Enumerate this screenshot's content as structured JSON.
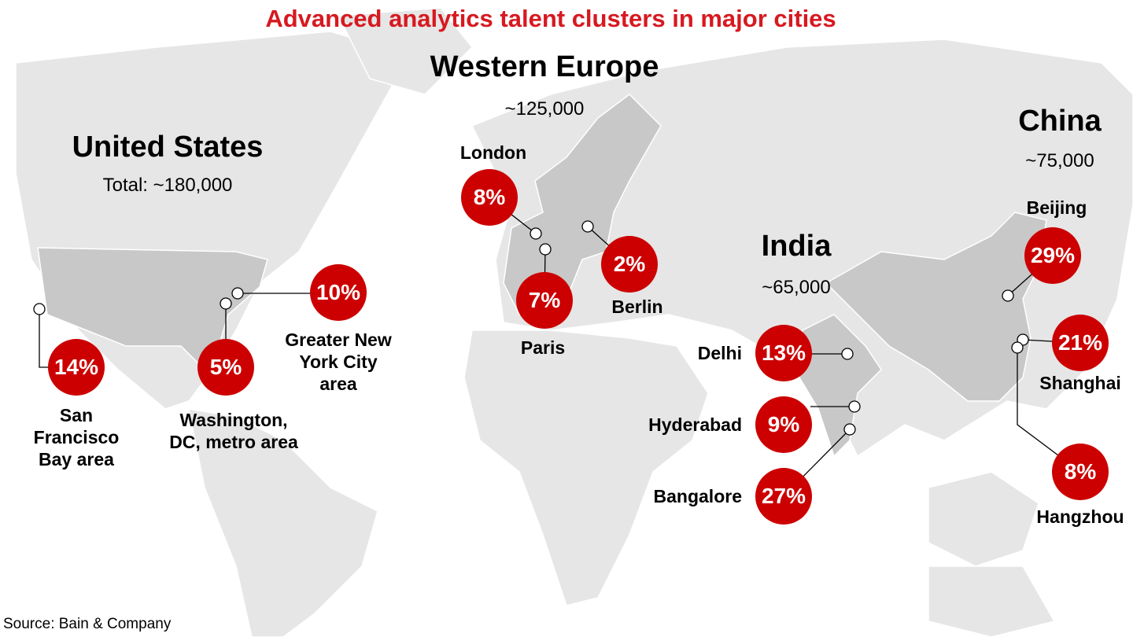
{
  "title": "Advanced analytics talent clusters in major cities",
  "source": "Source: Bain & Company",
  "regions": [
    {
      "name": "United States",
      "total": "Total: ~180,000",
      "cities": [
        {
          "name": "San Francisco Bay area",
          "share": "14%"
        },
        {
          "name": "Washington, DC, metro area",
          "share": "5%"
        },
        {
          "name": "Greater New York City area",
          "share": "10%"
        }
      ]
    },
    {
      "name": "Western Europe",
      "total": "~125,000",
      "cities": [
        {
          "name": "London",
          "share": "8%"
        },
        {
          "name": "Paris",
          "share": "7%"
        },
        {
          "name": "Berlin",
          "share": "2%"
        }
      ]
    },
    {
      "name": "India",
      "total": "~65,000",
      "cities": [
        {
          "name": "Delhi",
          "share": "13%"
        },
        {
          "name": "Hyderabad",
          "share": "9%"
        },
        {
          "name": "Bangalore",
          "share": "27%"
        }
      ]
    },
    {
      "name": "China",
      "total": "~75,000",
      "cities": [
        {
          "name": "Beijing",
          "share": "29%"
        },
        {
          "name": "Shanghai",
          "share": "21%"
        },
        {
          "name": "Hangzhou",
          "share": "8%"
        }
      ]
    }
  ]
}
